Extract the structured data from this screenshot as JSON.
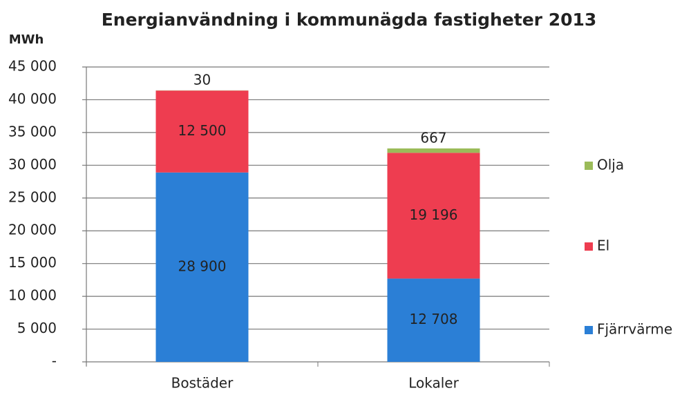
{
  "chart_data": {
    "type": "stacked_bar",
    "title": "Energianvändning i kommunägda fastigheter 2013",
    "y_label": "MWh",
    "categories": [
      "Bostäder",
      "Lokaler"
    ],
    "series": [
      {
        "name": "Fjärrvärme",
        "color": "#2b7fd6",
        "values": [
          28900,
          12708
        ],
        "value_labels": [
          "28 900",
          "12 708"
        ]
      },
      {
        "name": "El",
        "color": "#ee3d50",
        "values": [
          12500,
          19196
        ],
        "value_labels": [
          "12 500",
          "19 196"
        ]
      },
      {
        "name": "Olja",
        "color": "#9bbb59",
        "values": [
          30,
          667
        ]
      }
    ],
    "ylim": [
      0,
      45000
    ],
    "yticks": [
      {
        "value": 0,
        "label": "-"
      },
      {
        "value": 5000,
        "label": "5 000"
      },
      {
        "value": 10000,
        "label": "10 000"
      },
      {
        "value": 15000,
        "label": "15 000"
      },
      {
        "value": 20000,
        "label": "20 000"
      },
      {
        "value": 25000,
        "label": "25 000"
      },
      {
        "value": 30000,
        "label": "30 000"
      },
      {
        "value": 35000,
        "label": "35 000"
      },
      {
        "value": 40000,
        "label": "40 000"
      },
      {
        "value": 45000,
        "label": "45 000"
      }
    ],
    "grid": true,
    "legend": "right"
  }
}
